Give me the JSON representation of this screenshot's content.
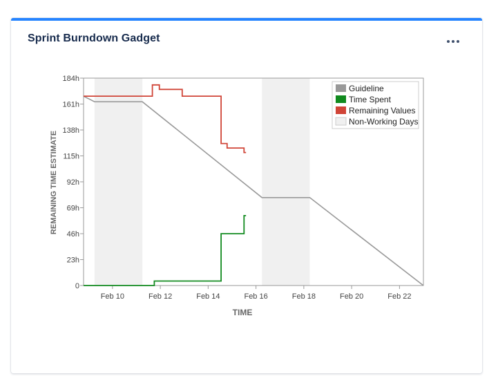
{
  "gadget": {
    "title": "Sprint Burndown Gadget",
    "menu_icon": "more-horizontal-icon"
  },
  "colors": {
    "accent": "#2684ff",
    "guideline": "#999999",
    "time_spent": "#108a1e",
    "remaining": "#d04437",
    "non_working": "#f0f0f0"
  },
  "chart_data": {
    "type": "line",
    "xlabel": "TIME",
    "ylabel": "REMAINING TIME ESTIMATE",
    "ylim": [
      0,
      184
    ],
    "xlim": [
      "2024-02-08T19:00",
      "2024-02-23T00:00"
    ],
    "yticks": [
      0,
      23,
      46,
      69,
      92,
      115,
      138,
      161,
      184
    ],
    "ytick_labels": [
      "0",
      "23h",
      "46h",
      "69h",
      "92h",
      "115h",
      "138h",
      "161h",
      "184h"
    ],
    "xticks": [
      "2024-02-10",
      "2024-02-12",
      "2024-02-14",
      "2024-02-16",
      "2024-02-18",
      "2024-02-20",
      "2024-02-22"
    ],
    "xtick_labels": [
      "Feb 10",
      "Feb 12",
      "Feb 14",
      "Feb 16",
      "Feb 18",
      "Feb 20",
      "Feb 22"
    ],
    "grid": false,
    "legend_position": "top-right",
    "legend": [
      "Guideline",
      "Time Spent",
      "Remaining Values",
      "Non-Working Days"
    ],
    "non_working_days": [
      {
        "start": "2024-02-09T06:00",
        "end": "2024-02-11T06:00"
      },
      {
        "start": "2024-02-16T06:00",
        "end": "2024-02-18T06:00"
      }
    ],
    "series": [
      {
        "name": "Guideline",
        "step": false,
        "points": [
          [
            "2024-02-08T19:00",
            168
          ],
          [
            "2024-02-09T06:00",
            163
          ],
          [
            "2024-02-11T06:00",
            163
          ],
          [
            "2024-02-16T06:00",
            78
          ],
          [
            "2024-02-18T06:00",
            78
          ],
          [
            "2024-02-23T00:00",
            0
          ]
        ]
      },
      {
        "name": "Time Spent",
        "step": true,
        "points": [
          [
            "2024-02-08T19:00",
            0
          ],
          [
            "2024-02-11T18:00",
            0
          ],
          [
            "2024-02-11T18:00",
            4
          ],
          [
            "2024-02-14T13:00",
            4
          ],
          [
            "2024-02-14T13:00",
            46
          ],
          [
            "2024-02-15T12:00",
            46
          ],
          [
            "2024-02-15T12:00",
            62
          ],
          [
            "2024-02-15T14:00",
            62
          ]
        ]
      },
      {
        "name": "Remaining Values",
        "step": true,
        "points": [
          [
            "2024-02-08T19:00",
            168
          ],
          [
            "2024-02-11T16:00",
            168
          ],
          [
            "2024-02-11T16:00",
            178
          ],
          [
            "2024-02-11T23:00",
            178
          ],
          [
            "2024-02-11T23:00",
            174
          ],
          [
            "2024-02-12T22:00",
            174
          ],
          [
            "2024-02-12T22:00",
            168
          ],
          [
            "2024-02-14T13:00",
            168
          ],
          [
            "2024-02-14T13:00",
            126
          ],
          [
            "2024-02-14T19:00",
            126
          ],
          [
            "2024-02-14T19:00",
            122
          ],
          [
            "2024-02-15T12:00",
            122
          ],
          [
            "2024-02-15T12:00",
            118
          ],
          [
            "2024-02-15T14:00",
            118
          ]
        ]
      }
    ]
  }
}
